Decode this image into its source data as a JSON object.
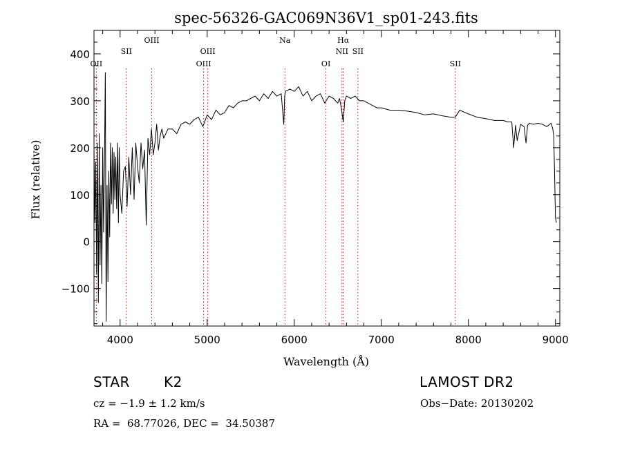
{
  "chart_data": {
    "type": "line",
    "title": "spec-56326-GAC069N36V1_sp01-243.fits",
    "xlabel": "Wavelength (Å)",
    "ylabel": "Flux (relative)",
    "xlim": [
      3700,
      9050
    ],
    "ylim": [
      -180,
      450
    ],
    "xticks": [
      4000,
      5000,
      6000,
      7000,
      8000,
      9000
    ],
    "yticks": [
      -100,
      0,
      100,
      200,
      300,
      400
    ],
    "tick_labels_x": [
      "4000",
      "5000",
      "6000",
      "7000",
      "8000",
      "9000"
    ],
    "tick_labels_y": [
      "−100",
      "0",
      "100",
      "200",
      "300",
      "400"
    ],
    "grid": false,
    "line_color": "#000000",
    "marker_color": "#cc0000",
    "series": [
      {
        "x": [
          3700,
          3710,
          3720,
          3730,
          3740,
          3750,
          3760,
          3770,
          3780,
          3790,
          3800,
          3810,
          3820,
          3830,
          3840,
          3850,
          3860,
          3870,
          3880,
          3890,
          3900,
          3910,
          3920,
          3930,
          3940,
          3950,
          3960,
          3970,
          3980,
          3990,
          4000,
          4020,
          4040,
          4060,
          4080,
          4100,
          4120,
          4140,
          4160,
          4180,
          4200,
          4220,
          4240,
          4260,
          4280,
          4300,
          4320,
          4340,
          4360,
          4380,
          4400,
          4420,
          4440,
          4460,
          4480,
          4500,
          4550,
          4600,
          4650,
          4700,
          4750,
          4800,
          4850,
          4900,
          4950,
          5000,
          5050,
          5100,
          5150,
          5200,
          5250,
          5300,
          5350,
          5400,
          5450,
          5500,
          5550,
          5600,
          5650,
          5700,
          5750,
          5800,
          5850,
          5880,
          5890,
          5900,
          5950,
          6000,
          6050,
          6100,
          6150,
          6200,
          6250,
          6300,
          6350,
          6400,
          6450,
          6500,
          6520,
          6540,
          6563,
          6580,
          6600,
          6650,
          6700,
          6750,
          6800,
          6850,
          6900,
          6950,
          7000,
          7100,
          7200,
          7300,
          7400,
          7500,
          7600,
          7700,
          7800,
          7850,
          7900,
          8000,
          8100,
          8200,
          8300,
          8400,
          8450,
          8498,
          8520,
          8542,
          8560,
          8600,
          8640,
          8662,
          8680,
          8700,
          8750,
          8800,
          8850,
          8900,
          8950,
          8970,
          8980,
          8990,
          9000,
          9010
        ],
        "y": [
          200,
          40,
          170,
          -70,
          210,
          -130,
          230,
          -50,
          120,
          -90,
          200,
          20,
          160,
          360,
          -170,
          120,
          -85,
          150,
          10,
          210,
          80,
          200,
          60,
          190,
          90,
          180,
          70,
          210,
          40,
          200,
          100,
          60,
          150,
          160,
          75,
          180,
          100,
          200,
          90,
          210,
          160,
          125,
          210,
          155,
          195,
          35,
          220,
          185,
          240,
          185,
          210,
          250,
          195,
          225,
          240,
          220,
          240,
          240,
          230,
          250,
          255,
          250,
          260,
          265,
          245,
          270,
          260,
          280,
          270,
          275,
          290,
          285,
          295,
          300,
          300,
          305,
          310,
          300,
          315,
          305,
          320,
          310,
          315,
          250,
          310,
          320,
          325,
          320,
          330,
          310,
          320,
          300,
          310,
          315,
          295,
          310,
          305,
          295,
          305,
          285,
          255,
          300,
          310,
          305,
          310,
          300,
          300,
          295,
          290,
          285,
          285,
          280,
          280,
          278,
          275,
          270,
          272,
          268,
          265,
          265,
          280,
          272,
          265,
          262,
          258,
          258,
          255,
          255,
          200,
          248,
          215,
          250,
          245,
          210,
          248,
          252,
          250,
          252,
          250,
          245,
          252,
          240,
          225,
          150,
          50,
          40
        ]
      }
    ],
    "line_markers": [
      {
        "label": "OII",
        "x": 3727,
        "row": 2
      },
      {
        "label": "SII",
        "x": 4072,
        "row": 1
      },
      {
        "label": "OIII",
        "x": 4363,
        "row": 0
      },
      {
        "label": "OIII",
        "x": 4959,
        "row": 2
      },
      {
        "label": "OIII",
        "x": 5007,
        "row": 1
      },
      {
        "label": "Na",
        "x": 5893,
        "row": 0
      },
      {
        "label": "OI",
        "x": 6364,
        "row": 2
      },
      {
        "label": "Hα",
        "x": 6563,
        "row": 0
      },
      {
        "label": "NII",
        "x": 6548,
        "row": 1
      },
      {
        "label": "SII",
        "x": 6731,
        "row": 1
      },
      {
        "label": "SII",
        "x": 7850,
        "row": 2
      }
    ]
  },
  "info": {
    "class_label": "STAR",
    "subclass_label": "K2",
    "survey_label": "LAMOST DR2",
    "redshift_text": "cz = −1.9 ± 1.2 km/s",
    "obsdate_text": "Obs−Date: 20130202",
    "coords_text": "RA =  68.77026, DEC =  34.50387"
  }
}
